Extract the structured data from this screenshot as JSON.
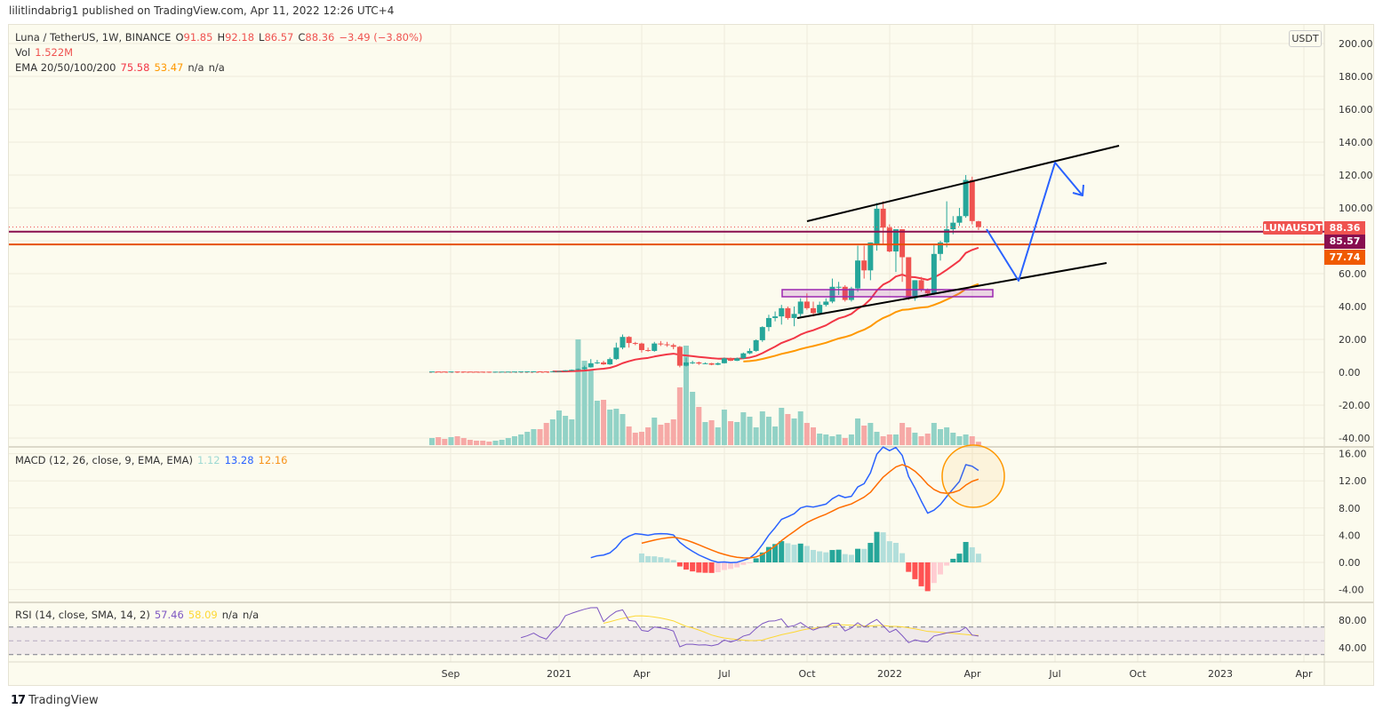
{
  "header": {
    "published": "lilitlindabrig1 published on TradingView.com, Apr 11, 2022 12:26 UTC+4"
  },
  "legend": {
    "symbol": "Luna / TetherUS, 1W, BINANCE",
    "o_label": "O",
    "open": "91.85",
    "h_label": "H",
    "high": "92.18",
    "l_label": "L",
    "low": "86.57",
    "c_label": "C",
    "close": "88.36",
    "change": "−3.49 (−3.80%)",
    "vol_label": "Vol",
    "vol": "1.522M",
    "ema_label": "EMA 20/50/100/200",
    "ema20": "75.58",
    "ema50": "53.47",
    "ema100": "n/a",
    "ema200": "n/a",
    "macd_label": "MACD (12, 26, close, 9, EMA, EMA)",
    "macd_hist": "1.12",
    "macd": "13.28",
    "macd_signal": "12.16",
    "rsi_label": "RSI (14, close, SMA, 14, 2)",
    "rsi": "57.46",
    "rsi_sma": "58.09",
    "rsi_u": "n/a",
    "rsi_l": "n/a"
  },
  "currency_button": "USDT",
  "price_labels": {
    "symbol": "LUNAUSDT",
    "last": "88.36",
    "line1": "85.57",
    "line2": "77.74"
  },
  "colors": {
    "up": "#26a69a",
    "down": "#ef5350",
    "ema20": "#f23645",
    "ema50": "#ff9800",
    "macd": "#2962ff",
    "signal": "#ff6d00",
    "rsi": "#7e57c2",
    "rsi_sma": "#fdd835",
    "hline1": "#880e4f",
    "hline2": "#e65100",
    "projection": "#2962ff"
  },
  "chart_data": {
    "type": "candlestick",
    "interval": "1W",
    "x_ticks": [
      "Sep",
      "2021",
      "Apr",
      "Jul",
      "Oct",
      "2022",
      "Apr",
      "Jul",
      "Oct",
      "2023",
      "Apr"
    ],
    "price_ticks": [
      "200.00",
      "180.00",
      "160.00",
      "140.00",
      "120.00",
      "100.00",
      "60.00",
      "40.00",
      "20.00",
      "0.00",
      "-20.00",
      "-40.00"
    ],
    "ylim": [
      -42,
      205
    ],
    "horizontal_lines": [
      85.57,
      77.74
    ],
    "ohlc": [
      [
        0.45,
        0.5,
        0.4,
        0.47
      ],
      [
        0.47,
        0.5,
        0.42,
        0.45
      ],
      [
        0.45,
        0.5,
        0.4,
        0.43
      ],
      [
        0.43,
        0.5,
        0.4,
        0.46
      ],
      [
        0.46,
        0.52,
        0.42,
        0.44
      ],
      [
        0.44,
        0.5,
        0.4,
        0.42
      ],
      [
        0.42,
        0.46,
        0.38,
        0.4
      ],
      [
        0.4,
        0.45,
        0.36,
        0.38
      ],
      [
        0.38,
        0.42,
        0.34,
        0.36
      ],
      [
        0.36,
        0.4,
        0.33,
        0.35
      ],
      [
        0.35,
        0.4,
        0.32,
        0.37
      ],
      [
        0.37,
        0.42,
        0.34,
        0.39
      ],
      [
        0.39,
        0.45,
        0.36,
        0.42
      ],
      [
        0.42,
        0.5,
        0.4,
        0.46
      ],
      [
        0.46,
        0.55,
        0.43,
        0.5
      ],
      [
        0.5,
        0.58,
        0.46,
        0.52
      ],
      [
        0.52,
        0.6,
        0.48,
        0.55
      ],
      [
        0.55,
        0.62,
        0.5,
        0.52
      ],
      [
        0.52,
        0.6,
        0.48,
        0.5
      ],
      [
        0.5,
        0.7,
        0.45,
        0.6
      ],
      [
        0.6,
        0.8,
        0.55,
        0.7
      ],
      [
        0.7,
        1.3,
        0.65,
        1.2
      ],
      [
        1.2,
        1.7,
        1.0,
        1.5
      ],
      [
        1.5,
        2.3,
        1.3,
        2.0
      ],
      [
        2.0,
        4.0,
        1.5,
        3.0
      ],
      [
        3.0,
        8.0,
        2.8,
        5.5
      ],
      [
        5.5,
        7.5,
        5.0,
        6.0
      ],
      [
        6.0,
        7.0,
        4.5,
        4.8
      ],
      [
        4.8,
        9.0,
        4.5,
        8.0
      ],
      [
        8.0,
        18,
        7.5,
        15
      ],
      [
        15,
        23,
        14,
        21.5
      ],
      [
        21.5,
        22,
        15,
        17.8
      ],
      [
        17.8,
        18.5,
        16.5,
        17.5
      ],
      [
        17.5,
        18,
        12,
        13.5
      ],
      [
        13.5,
        15,
        12.5,
        13
      ],
      [
        13,
        18.5,
        12.5,
        17.5
      ],
      [
        17.5,
        19,
        16,
        17
      ],
      [
        17,
        18.5,
        15.5,
        16.5
      ],
      [
        16.5,
        17.5,
        14,
        15.5
      ],
      [
        15.5,
        16,
        3,
        4
      ],
      [
        4,
        9,
        3.5,
        6
      ],
      [
        6,
        7,
        5,
        6
      ],
      [
        6,
        6.5,
        4.5,
        5.3
      ],
      [
        5.3,
        6,
        5,
        5.5
      ],
      [
        5.5,
        5.7,
        4.3,
        4.6
      ],
      [
        4.6,
        6,
        4.3,
        5.5
      ],
      [
        5.5,
        9,
        5.3,
        8.5
      ],
      [
        8.5,
        9,
        6.8,
        7
      ],
      [
        7,
        9,
        6.8,
        8.5
      ],
      [
        8.5,
        12,
        8,
        11.5
      ],
      [
        11.5,
        14.5,
        11,
        13
      ],
      [
        13,
        20,
        12.5,
        19.5
      ],
      [
        19.5,
        28,
        18.5,
        27.5
      ],
      [
        27.5,
        35,
        25,
        33
      ],
      [
        33,
        37,
        31,
        34
      ],
      [
        34,
        41,
        29,
        39
      ],
      [
        39,
        40,
        32,
        33
      ],
      [
        33,
        40,
        28,
        35.5
      ],
      [
        35.5,
        45,
        34,
        43
      ],
      [
        43,
        48,
        38,
        39
      ],
      [
        39,
        43,
        34,
        36
      ],
      [
        36,
        43,
        35,
        41
      ],
      [
        41,
        45,
        40,
        43
      ],
      [
        43,
        57,
        42,
        52
      ],
      [
        52,
        55,
        47,
        52
      ],
      [
        52,
        53,
        43,
        44
      ],
      [
        44,
        52,
        43,
        51
      ],
      [
        51,
        77,
        49,
        68
      ],
      [
        68,
        77,
        57,
        62
      ],
      [
        62,
        79,
        56,
        79
      ],
      [
        78,
        103,
        74,
        99.5
      ],
      [
        99.5,
        104,
        78,
        88
      ],
      [
        88,
        90,
        73,
        73.5
      ],
      [
        73.5,
        87,
        61,
        87
      ],
      [
        87,
        87,
        55,
        70
      ],
      [
        70,
        70,
        44,
        45
      ],
      [
        45,
        56,
        43.5,
        56
      ],
      [
        56,
        58,
        49,
        50
      ],
      [
        50,
        51,
        46,
        48
      ],
      [
        48,
        78,
        47,
        72
      ],
      [
        72,
        80,
        68,
        79
      ],
      [
        79,
        104,
        76,
        87
      ],
      [
        87,
        95,
        84,
        91
      ],
      [
        91,
        100,
        89,
        95
      ],
      [
        95,
        120,
        94,
        117
      ],
      [
        117,
        119,
        90,
        92
      ],
      [
        91.85,
        92.18,
        86.57,
        88.36
      ]
    ],
    "volume_m": [
      3.2,
      3.6,
      2.8,
      3.6,
      4,
      3.2,
      2.4,
      2,
      2,
      1.6,
      2,
      2.4,
      3.2,
      4,
      4.8,
      6,
      7.2,
      7.2,
      10,
      11.6,
      15.6,
      13.2,
      11.6,
      47.6,
      38,
      33.6,
      20,
      20.4,
      16,
      16.4,
      14,
      8.4,
      5.6,
      6,
      8,
      12.4,
      9.2,
      10,
      11.6,
      26,
      44.8,
      24,
      17.2,
      10.4,
      11.2,
      8,
      16,
      10.8,
      10.4,
      14.8,
      12.8,
      8,
      15.2,
      12.8,
      8.4,
      16.8,
      14,
      12,
      15.2,
      10,
      8,
      5.2,
      4.8,
      4,
      4.8,
      3.2,
      4.8,
      12,
      8.8,
      10,
      6,
      4,
      4.8,
      4.8,
      10,
      8,
      5.6,
      4,
      5.2,
      10,
      7.2,
      8,
      5.6,
      4,
      4.8,
      4,
      1.522
    ],
    "macd_ticks": [
      "16.00",
      "12.00",
      "8.00",
      "4.00",
      "0.00",
      "-4.00"
    ],
    "macd_ylim": [
      -4.4,
      16.9
    ],
    "rsi_ticks": [
      "80.00",
      "40.00"
    ],
    "rsi_levels": [
      70,
      50,
      30
    ]
  }
}
